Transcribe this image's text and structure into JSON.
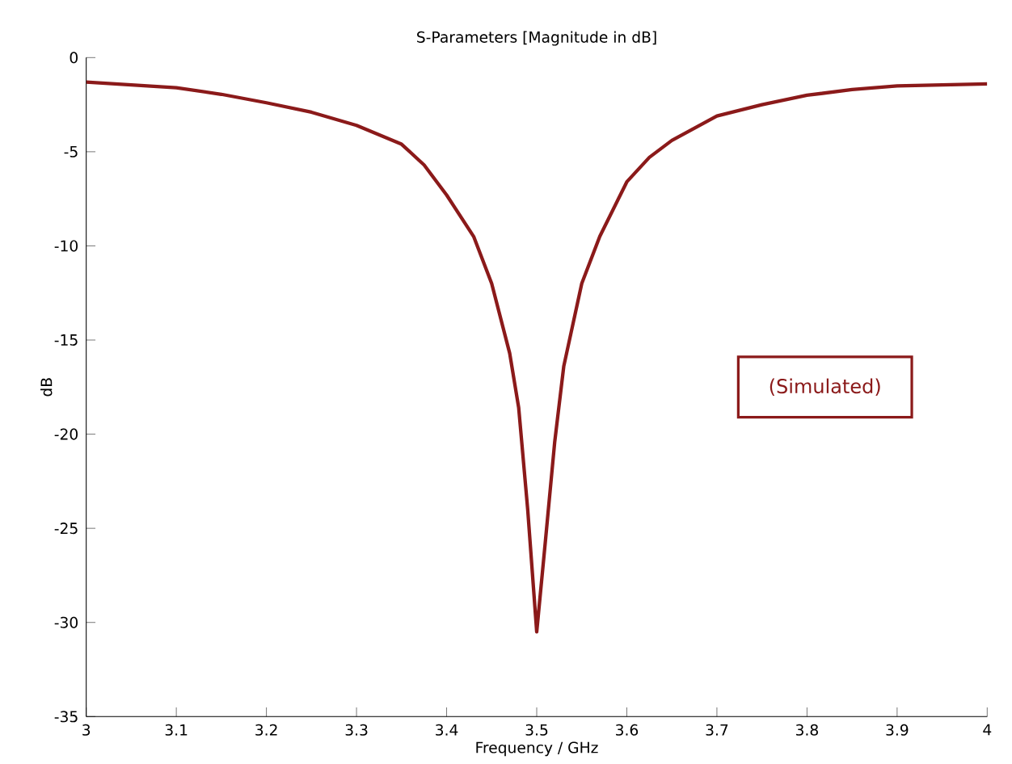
{
  "chart_data": {
    "type": "line",
    "title": "S-Parameters [Magnitude in dB]",
    "xlabel": "Frequency / GHz",
    "ylabel": "dB",
    "annotations": [
      "(Simulated)"
    ],
    "x": [
      3,
      3.1,
      3.15,
      3.2,
      3.25,
      3.3,
      3.35,
      3.375,
      3.4,
      3.43,
      3.45,
      3.47,
      3.48,
      3.49,
      3.5,
      3.51,
      3.52,
      3.53,
      3.55,
      3.57,
      3.6,
      3.625,
      3.65,
      3.7,
      3.75,
      3.8,
      3.85,
      3.9,
      4
    ],
    "series": [
      {
        "color": "#8b1a1a",
        "values": [
          -1.3,
          -1.6,
          -1.95,
          -2.4,
          -2.9,
          -3.6,
          -4.6,
          -5.7,
          -7.3,
          -9.5,
          -12,
          -15.7,
          -18.6,
          -24,
          -30.5,
          -25.5,
          -20.4,
          -16.4,
          -12,
          -9.5,
          -6.6,
          -5.3,
          -4.4,
          -3.1,
          -2.5,
          -2,
          -1.7,
          -1.5,
          -1.4
        ]
      }
    ],
    "xlim": [
      3,
      4
    ],
    "ylim": [
      -35,
      0
    ],
    "xticks": [
      3,
      3.1,
      3.2,
      3.3,
      3.4,
      3.5,
      3.6,
      3.7,
      3.8,
      3.9,
      4
    ],
    "yticks": [
      -35,
      -30,
      -25,
      -20,
      -15,
      -10,
      -5,
      0
    ],
    "grid": false,
    "marker": "none",
    "line_style": "solid"
  }
}
